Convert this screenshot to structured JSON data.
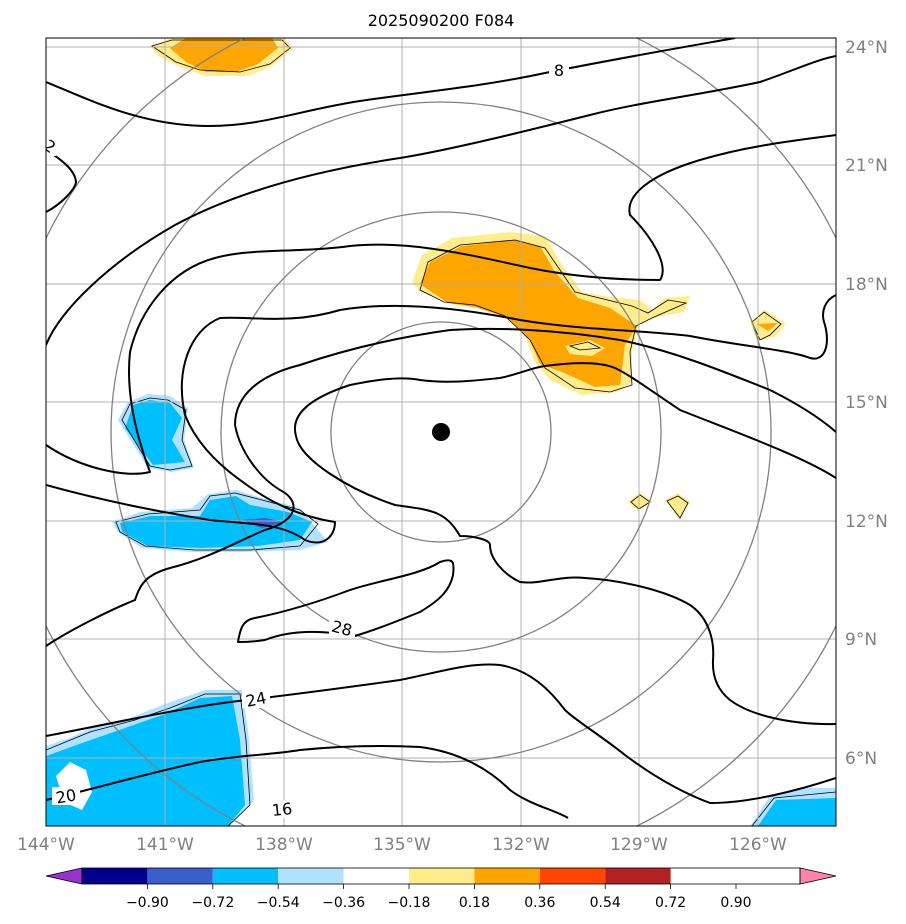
{
  "title": "2025090200 F084",
  "lon_labels": [
    "144°W",
    "141°W",
    "138°W",
    "135°W",
    "132°W",
    "129°W",
    "126°W"
  ],
  "lat_labels": [
    "24°N",
    "21°N",
    "18°N",
    "15°N",
    "12°N",
    "9°N",
    "6°N"
  ],
  "colorbar": {
    "ticks": [
      "−0.90",
      "−0.72",
      "−0.54",
      "−0.36",
      "−0.18",
      "0.18",
      "0.36",
      "0.54",
      "0.72",
      "0.90"
    ],
    "colors": [
      "#9932cc",
      "#00008b",
      "#3a5fcd",
      "#00bfff",
      "#b0e2ff",
      "#ffffff",
      "#ffec8b",
      "#ffa500",
      "#ff4500",
      "#b22222",
      "#ff82ab"
    ]
  },
  "contour_labels": [
    "8",
    "2",
    "28",
    "24",
    "20",
    "16"
  ],
  "colors": {
    "grid": "#b0b0b0",
    "range_ring": "#808080",
    "contour": "#000000"
  },
  "marker": "storm-center-dot"
}
